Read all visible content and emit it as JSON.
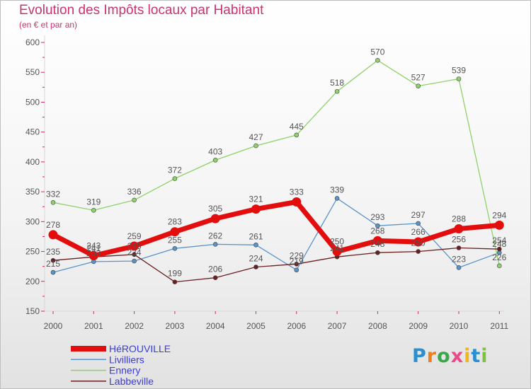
{
  "title": "Evolution des Impôts locaux par Habitant",
  "subtitle": "(en € et par an)",
  "logo": {
    "text": "Proxiti",
    "letters": [
      "P",
      "r",
      "o",
      "x",
      "i",
      "t",
      "i"
    ],
    "colors": [
      "#2a8fd0",
      "#f07f19",
      "#3aa84a",
      "#e94b8a",
      "#f2b51c",
      "#2a8fd0",
      "#7fc241"
    ]
  },
  "chart_data": {
    "type": "line",
    "title": "Evolution des Impôts locaux par Habitant",
    "subtitle": "(en € et par an)",
    "xlabel": "",
    "ylabel": "",
    "categories": [
      "2000",
      "2001",
      "2002",
      "2003",
      "2004",
      "2005",
      "2006",
      "2007",
      "2008",
      "2009",
      "2010",
      "2011"
    ],
    "ylim": [
      150,
      600
    ],
    "yticks": [
      150,
      200,
      250,
      300,
      350,
      400,
      450,
      500,
      550,
      600
    ],
    "grid": false,
    "legend_position": "bottom-left",
    "series": [
      {
        "name": "HéROUVILLE",
        "color": "#e30d0d",
        "emphasis": true,
        "values": [
          278,
          243,
          259,
          283,
          305,
          321,
          333,
          250,
          268,
          266,
          288,
          294
        ],
        "labels": [
          "278",
          "243",
          "259",
          "283",
          "305",
          "321",
          "333",
          "250",
          "268",
          "266",
          "288",
          "294"
        ]
      },
      {
        "name": "Livilliers",
        "color": "#5a93c8",
        "emphasis": false,
        "values": [
          215,
          233,
          234,
          255,
          262,
          261,
          219,
          339,
          293,
          297,
          223,
          248
        ],
        "labels": [
          "215",
          "233",
          "234",
          "255",
          "262",
          "261",
          "219",
          "339",
          "293",
          "297",
          "223",
          "248"
        ]
      },
      {
        "name": "Ennery",
        "color": "#8fd16a",
        "emphasis": false,
        "values": [
          332,
          319,
          336,
          372,
          403,
          427,
          445,
          518,
          570,
          527,
          539,
          226
        ],
        "labels": [
          "332",
          "319",
          "336",
          "372",
          "403",
          "427",
          "445",
          "518",
          "570",
          "527",
          "539",
          "226"
        ]
      },
      {
        "name": "Labbeville",
        "color": "#6b1f1f",
        "emphasis": false,
        "values": [
          235,
          241,
          245,
          199,
          206,
          224,
          229,
          241,
          248,
          250,
          256,
          254
        ],
        "labels": [
          "235",
          "241",
          "245",
          "199",
          "206",
          "224",
          "229",
          "241",
          "248",
          "250",
          "256",
          "254"
        ]
      }
    ]
  }
}
